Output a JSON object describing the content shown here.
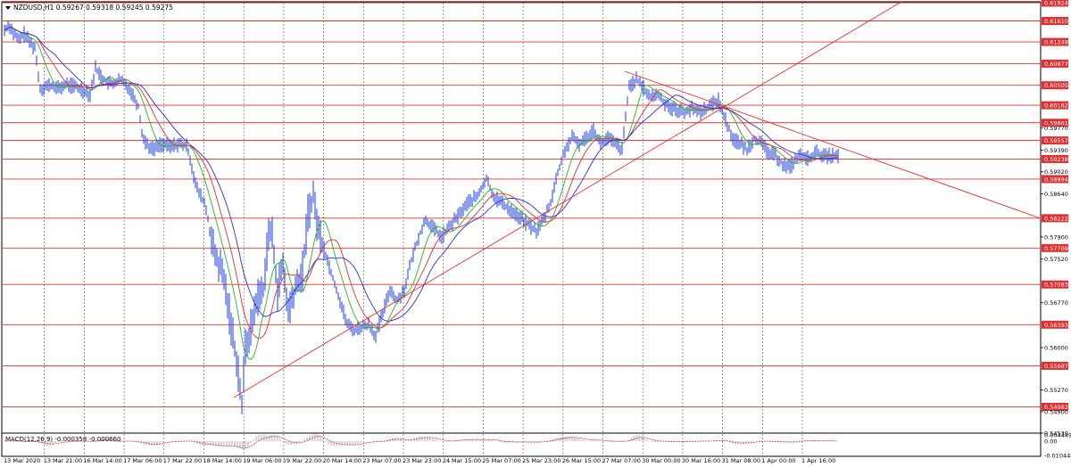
{
  "window": {
    "symbol_info": "NZDUSD,H1  0.59267 0.59318 0.59245 0.59275",
    "dropdown_icon": "triangle-down-icon"
  },
  "colors": {
    "candles": "#1d3fd6",
    "ma_fast": "#22b822",
    "ma_mid": "#e23030",
    "ma_slow": "#2b2bd8",
    "levels": "#e23030",
    "trendlines": "#e23030",
    "macd_hist": "#a8a8a8",
    "macd_signal": "#e23030",
    "grid": "#555555",
    "axis_label_highlight": "#e23030"
  },
  "price_axis": {
    "scale": [
      0.61924,
      0.5453
    ],
    "tick_labels": [
      "0.61924",
      "0.61610",
      "0.61249",
      "0.60877",
      "0.60505",
      "0.60162",
      "0.59861",
      "0.59770",
      "0.59557",
      "0.59390",
      "0.59238",
      "0.59020",
      "0.58894",
      "0.58640",
      "0.58222",
      "0.57900",
      "0.57709",
      "0.57520",
      "0.57083",
      "0.56770",
      "0.56393",
      "0.56000",
      "0.55687",
      "0.55270",
      "0.54982",
      "0.54900",
      "0.54530"
    ],
    "highlighted_labels": [
      "0.61924",
      "0.61610",
      "0.61249",
      "0.60877",
      "0.60505",
      "0.60162",
      "0.59861",
      "0.59557",
      "0.59238",
      "0.58894",
      "0.58222",
      "0.57709",
      "0.57083",
      "0.56393",
      "0.55687",
      "0.54982"
    ]
  },
  "levels": [
    0.61924,
    0.6161,
    0.61249,
    0.60877,
    0.60505,
    0.60162,
    0.59861,
    0.59557,
    0.59238,
    0.58894,
    0.58222,
    0.57709,
    0.57083,
    0.56393,
    0.55687,
    0.54982
  ],
  "time_axis": {
    "labels": [
      "13 Mar 2020",
      "13 Mar 21:00",
      "16 Mar 14:00",
      "17 Mar 06:00",
      "17 Mar 22:00",
      "18 Mar 14:00",
      "19 Mar 06:00",
      "19 Mar 22:00",
      "20 Mar 14:00",
      "23 Mar 07:00",
      "23 Mar 23:00",
      "24 Mar 15:00",
      "25 Mar 07:00",
      "25 Mar 23:00",
      "26 Mar 15:00",
      "27 Mar 07:00",
      "30 Mar 00:00",
      "30 Mar 16:00",
      "31 Mar 08:00",
      "1 Apr 00:00",
      "1 Apr 16:00"
    ]
  },
  "macd": {
    "label": "MACD(12,26,9) -0.000358 -0.000660",
    "tick_labels": [
      "0.004449",
      "0.00",
      "-0.010448"
    ],
    "scale": [
      0.004449,
      -0.010448
    ]
  },
  "chart_data": {
    "type": "line",
    "xlabel": "",
    "ylabel": "",
    "x_ticks": [
      "13 Mar 2020",
      "13 Mar 21:00",
      "16 Mar 14:00",
      "17 Mar 06:00",
      "17 Mar 22:00",
      "18 Mar 14:00",
      "19 Mar 06:00",
      "19 Mar 22:00",
      "20 Mar 14:00",
      "23 Mar 07:00",
      "23 Mar 23:00",
      "24 Mar 15:00",
      "25 Mar 07:00",
      "25 Mar 23:00",
      "26 Mar 15:00",
      "27 Mar 07:00",
      "30 Mar 00:00",
      "30 Mar 16:00",
      "31 Mar 08:00",
      "1 Apr 00:00",
      "1 Apr 16:00"
    ],
    "ylim": [
      0.5453,
      0.61924
    ],
    "grid": true,
    "price_anchors": [
      [
        0,
        0.6145
      ],
      [
        5,
        0.6155
      ],
      [
        10,
        0.614
      ],
      [
        16,
        0.6128
      ],
      [
        22,
        0.6138
      ],
      [
        28,
        0.6125
      ],
      [
        34,
        0.6115
      ],
      [
        40,
        0.6045
      ],
      [
        50,
        0.605
      ],
      [
        60,
        0.6045
      ],
      [
        70,
        0.6052
      ],
      [
        80,
        0.6048
      ],
      [
        90,
        0.604
      ],
      [
        96,
        0.6035
      ],
      [
        102,
        0.608
      ],
      [
        110,
        0.6062
      ],
      [
        120,
        0.6052
      ],
      [
        130,
        0.606
      ],
      [
        140,
        0.6045
      ],
      [
        150,
        0.6015
      ],
      [
        155,
        0.596
      ],
      [
        165,
        0.594
      ],
      [
        175,
        0.595
      ],
      [
        185,
        0.5945
      ],
      [
        195,
        0.595
      ],
      [
        205,
        0.5945
      ],
      [
        215,
        0.5875
      ],
      [
        225,
        0.5845
      ],
      [
        235,
        0.576
      ],
      [
        245,
        0.5725
      ],
      [
        255,
        0.563
      ],
      [
        262,
        0.556
      ],
      [
        266,
        0.55
      ],
      [
        270,
        0.56
      ],
      [
        276,
        0.563
      ],
      [
        282,
        0.568
      ],
      [
        290,
        0.57
      ],
      [
        296,
        0.58
      ],
      [
        300,
        0.579
      ],
      [
        306,
        0.57
      ],
      [
        312,
        0.574
      ],
      [
        318,
        0.566
      ],
      [
        326,
        0.57
      ],
      [
        334,
        0.573
      ],
      [
        340,
        0.583
      ],
      [
        346,
        0.586
      ],
      [
        352,
        0.58
      ],
      [
        360,
        0.576
      ],
      [
        368,
        0.572
      ],
      [
        376,
        0.568
      ],
      [
        384,
        0.564
      ],
      [
        392,
        0.563
      ],
      [
        400,
        0.5635
      ],
      [
        408,
        0.564
      ],
      [
        416,
        0.562
      ],
      [
        424,
        0.566
      ],
      [
        432,
        0.57
      ],
      [
        440,
        0.568
      ],
      [
        448,
        0.57
      ],
      [
        456,
        0.575
      ],
      [
        464,
        0.579
      ],
      [
        472,
        0.582
      ],
      [
        480,
        0.5805
      ],
      [
        490,
        0.579
      ],
      [
        500,
        0.581
      ],
      [
        510,
        0.583
      ],
      [
        520,
        0.585
      ],
      [
        530,
        0.586
      ],
      [
        540,
        0.589
      ],
      [
        548,
        0.586
      ],
      [
        556,
        0.585
      ],
      [
        564,
        0.584
      ],
      [
        572,
        0.583
      ],
      [
        580,
        0.582
      ],
      [
        588,
        0.581
      ],
      [
        596,
        0.58
      ],
      [
        604,
        0.582
      ],
      [
        612,
        0.585
      ],
      [
        620,
        0.59
      ],
      [
        628,
        0.594
      ],
      [
        636,
        0.596
      ],
      [
        644,
        0.595
      ],
      [
        652,
        0.596
      ],
      [
        660,
        0.5975
      ],
      [
        668,
        0.595
      ],
      [
        676,
        0.596
      ],
      [
        684,
        0.595
      ],
      [
        692,
        0.594
      ],
      [
        700,
        0.605
      ],
      [
        708,
        0.606
      ],
      [
        716,
        0.6045
      ],
      [
        724,
        0.603
      ],
      [
        732,
        0.6035
      ],
      [
        740,
        0.602
      ],
      [
        750,
        0.601
      ],
      [
        760,
        0.6005
      ],
      [
        770,
        0.601
      ],
      [
        780,
        0.6005
      ],
      [
        790,
        0.6015
      ],
      [
        800,
        0.6025
      ],
      [
        808,
        0.599
      ],
      [
        816,
        0.596
      ],
      [
        824,
        0.595
      ],
      [
        832,
        0.594
      ],
      [
        840,
        0.596
      ],
      [
        848,
        0.595
      ],
      [
        856,
        0.5935
      ],
      [
        864,
        0.593
      ],
      [
        872,
        0.5915
      ],
      [
        880,
        0.591
      ],
      [
        890,
        0.593
      ],
      [
        900,
        0.5925
      ],
      [
        910,
        0.5935
      ],
      [
        920,
        0.5928
      ],
      [
        930,
        0.593
      ],
      [
        934,
        0.5928
      ]
    ],
    "series": [
      {
        "values": []
      },
      {
        "values": []
      },
      {
        "values": []
      }
    ]
  }
}
